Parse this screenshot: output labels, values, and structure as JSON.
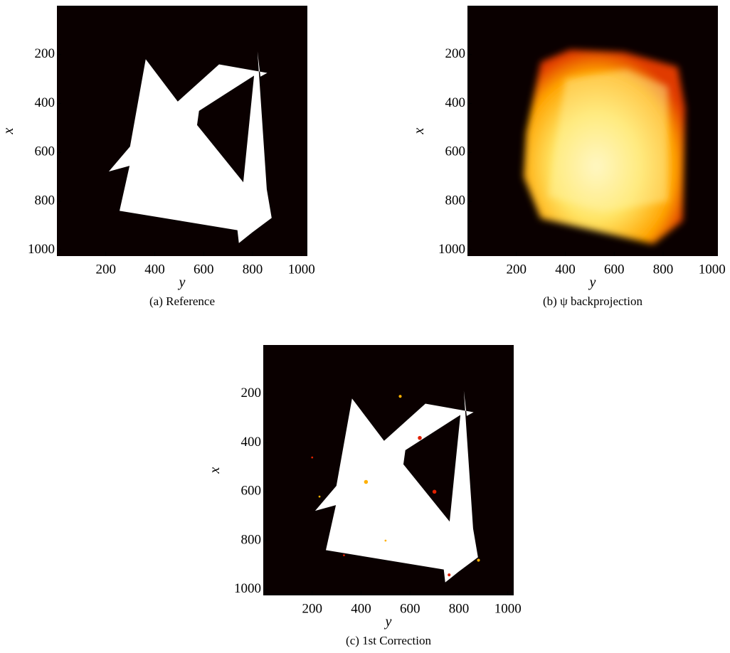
{
  "chart_data": [
    {
      "type": "image",
      "caption": "(a) Reference",
      "xlabel": "y",
      "ylabel": "x",
      "xlim": [
        0,
        1024
      ],
      "ylim": [
        0,
        1024
      ],
      "yinvert": true,
      "xticks": [
        200,
        400,
        600,
        800,
        1000
      ],
      "yticks": [
        200,
        400,
        600,
        800,
        1000
      ],
      "render": "sharp"
    },
    {
      "type": "image",
      "caption": "(b) ψ backprojection",
      "xlabel": "y",
      "ylabel": "x",
      "xlim": [
        0,
        1024
      ],
      "ylim": [
        0,
        1024
      ],
      "yinvert": true,
      "xticks": [
        200,
        400,
        600,
        800,
        1000
      ],
      "yticks": [
        200,
        400,
        600,
        800,
        1000
      ],
      "render": "blurred"
    },
    {
      "type": "image",
      "caption": "(c) 1st Correction",
      "xlabel": "y",
      "ylabel": "x",
      "xlim": [
        0,
        1024
      ],
      "ylim": [
        0,
        1024
      ],
      "yinvert": true,
      "xticks": [
        200,
        400,
        600,
        800,
        1000
      ],
      "yticks": [
        200,
        400,
        600,
        800,
        1000
      ],
      "render": "noisy"
    }
  ]
}
